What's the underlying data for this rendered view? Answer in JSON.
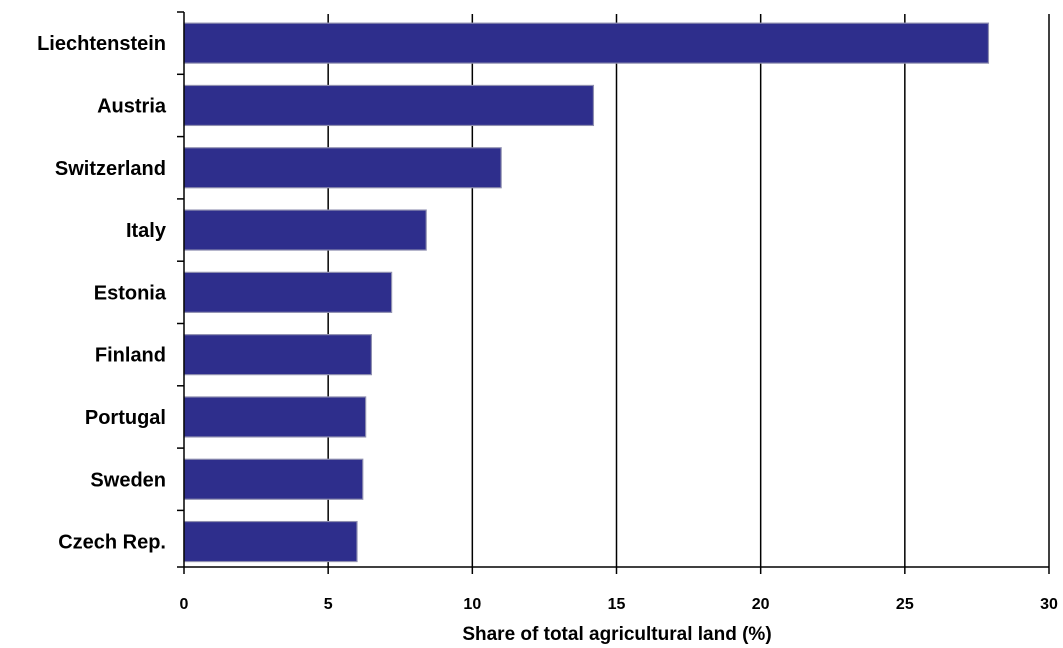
{
  "chart_data": {
    "type": "bar",
    "orientation": "horizontal",
    "title": "",
    "xlabel": "Share of total agricultural land (%)",
    "ylabel": "",
    "categories": [
      "Liechtenstein",
      "Austria",
      "Switzerland",
      "Italy",
      "Estonia",
      "Finland",
      "Portugal",
      "Sweden",
      "Czech Rep."
    ],
    "values": [
      27.9,
      14.2,
      11.0,
      8.4,
      7.2,
      6.5,
      6.3,
      6.2,
      6.0
    ],
    "xlim": [
      0,
      30
    ],
    "xticks": [
      0,
      5,
      10,
      15,
      20,
      25,
      30
    ],
    "grid": "vertical",
    "legend": "none",
    "colors": {
      "bar_fill": "#2e2e8c",
      "bar_stroke": "#8f8fb0",
      "gridline": "#000000",
      "axis": "#000000"
    }
  }
}
